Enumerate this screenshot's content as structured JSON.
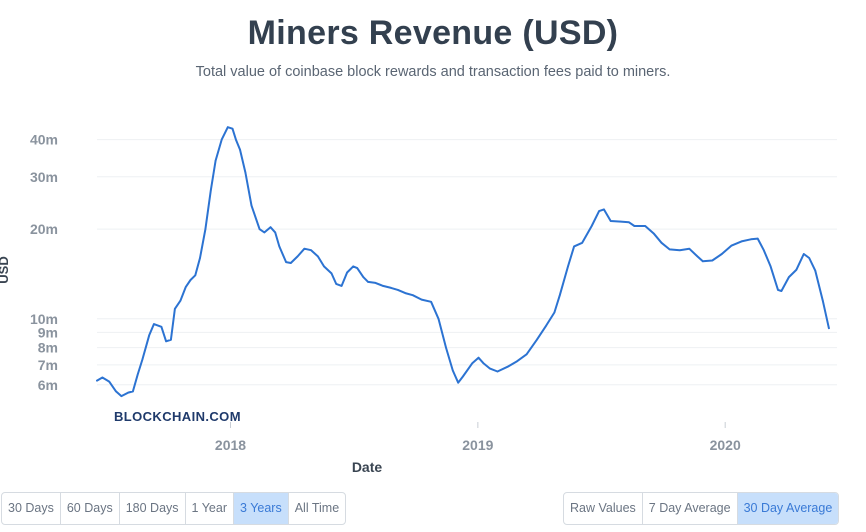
{
  "header": {
    "title": "Miners Revenue (USD)",
    "subtitle": "Total value of coinbase block rewards and transaction fees paid to miners."
  },
  "watermark": "BLOCKCHAIN.COM",
  "colors": {
    "line": "#2c73d2",
    "grid": "#eef0f3",
    "axis_text": "#8a939e",
    "active_button": "#c7dffb"
  },
  "range_buttons": [
    {
      "label": "30 Days",
      "active": false
    },
    {
      "label": "60 Days",
      "active": false
    },
    {
      "label": "180 Days",
      "active": false
    },
    {
      "label": "1 Year",
      "active": false
    },
    {
      "label": "3 Years",
      "active": true
    },
    {
      "label": "All Time",
      "active": false
    }
  ],
  "average_buttons": [
    {
      "label": "Raw Values",
      "active": false
    },
    {
      "label": "7 Day Average",
      "active": false
    },
    {
      "label": "30 Day Average",
      "active": true
    }
  ],
  "chart_data": {
    "type": "line",
    "title": "Miners Revenue (USD)",
    "xlabel": "Date",
    "ylabel": "USD",
    "y_scale": "log",
    "grid": true,
    "ylim": [
      4500000,
      48000000
    ],
    "xlim": [
      "2017-06-18",
      "2020-06-14"
    ],
    "x_ticks": [
      {
        "label": "2018",
        "date": "2018-01-01"
      },
      {
        "label": "2019",
        "date": "2019-01-01"
      },
      {
        "label": "2020",
        "date": "2020-01-01"
      }
    ],
    "y_ticks": [
      {
        "label": "6m",
        "value": 6000000
      },
      {
        "label": "7m",
        "value": 7000000
      },
      {
        "label": "8m",
        "value": 8000000
      },
      {
        "label": "9m",
        "value": 9000000
      },
      {
        "label": "10m",
        "value": 10000000
      },
      {
        "label": "20m",
        "value": 20000000
      },
      {
        "label": "30m",
        "value": 30000000
      },
      {
        "label": "40m",
        "value": 40000000
      }
    ],
    "series": [
      {
        "points": [
          [
            "2017-06-18",
            6200000
          ],
          [
            "2017-06-26",
            6350000
          ],
          [
            "2017-07-06",
            6150000
          ],
          [
            "2017-07-16",
            5700000
          ],
          [
            "2017-07-24",
            5500000
          ],
          [
            "2017-08-03",
            5650000
          ],
          [
            "2017-08-10",
            5700000
          ],
          [
            "2017-08-17",
            6500000
          ],
          [
            "2017-08-24",
            7300000
          ],
          [
            "2017-09-03",
            8800000
          ],
          [
            "2017-09-10",
            9600000
          ],
          [
            "2017-09-21",
            9400000
          ],
          [
            "2017-09-28",
            8400000
          ],
          [
            "2017-10-05",
            8500000
          ],
          [
            "2017-10-11",
            10800000
          ],
          [
            "2017-10-19",
            11500000
          ],
          [
            "2017-10-27",
            12800000
          ],
          [
            "2017-11-03",
            13500000
          ],
          [
            "2017-11-10",
            14000000
          ],
          [
            "2017-11-17",
            16000000
          ],
          [
            "2017-11-25",
            20000000
          ],
          [
            "2017-12-03",
            27000000
          ],
          [
            "2017-12-10",
            34000000
          ],
          [
            "2017-12-19",
            40000000
          ],
          [
            "2017-12-28",
            44000000
          ],
          [
            "2018-01-04",
            43500000
          ],
          [
            "2018-01-09",
            40000000
          ],
          [
            "2018-01-15",
            37000000
          ],
          [
            "2018-01-23",
            31000000
          ],
          [
            "2018-02-01",
            24000000
          ],
          [
            "2018-02-13",
            20000000
          ],
          [
            "2018-02-20",
            19500000
          ],
          [
            "2018-03-01",
            20300000
          ],
          [
            "2018-03-08",
            19500000
          ],
          [
            "2018-03-14",
            17500000
          ],
          [
            "2018-03-24",
            15500000
          ],
          [
            "2018-03-31",
            15400000
          ],
          [
            "2018-04-10",
            16200000
          ],
          [
            "2018-04-20",
            17200000
          ],
          [
            "2018-04-30",
            17000000
          ],
          [
            "2018-05-10",
            16200000
          ],
          [
            "2018-05-19",
            15000000
          ],
          [
            "2018-05-30",
            14200000
          ],
          [
            "2018-06-06",
            13100000
          ],
          [
            "2018-06-14",
            12900000
          ],
          [
            "2018-06-22",
            14300000
          ],
          [
            "2018-07-01",
            15000000
          ],
          [
            "2018-07-07",
            14800000
          ],
          [
            "2018-07-16",
            13800000
          ],
          [
            "2018-07-23",
            13300000
          ],
          [
            "2018-08-03",
            13200000
          ],
          [
            "2018-08-14",
            12900000
          ],
          [
            "2018-08-26",
            12700000
          ],
          [
            "2018-09-05",
            12500000
          ],
          [
            "2018-09-16",
            12200000
          ],
          [
            "2018-09-27",
            12000000
          ],
          [
            "2018-10-10",
            11600000
          ],
          [
            "2018-10-24",
            11400000
          ],
          [
            "2018-11-04",
            10000000
          ],
          [
            "2018-11-15",
            8000000
          ],
          [
            "2018-11-25",
            6700000
          ],
          [
            "2018-12-03",
            6100000
          ],
          [
            "2018-12-10",
            6400000
          ],
          [
            "2018-12-24",
            7100000
          ],
          [
            "2019-01-02",
            7400000
          ],
          [
            "2019-01-09",
            7100000
          ],
          [
            "2019-01-19",
            6800000
          ],
          [
            "2019-01-30",
            6650000
          ],
          [
            "2019-02-14",
            6900000
          ],
          [
            "2019-02-28",
            7200000
          ],
          [
            "2019-03-14",
            7600000
          ],
          [
            "2019-03-29",
            8500000
          ],
          [
            "2019-04-12",
            9500000
          ],
          [
            "2019-04-24",
            10500000
          ],
          [
            "2019-05-02",
            12000000
          ],
          [
            "2019-05-14",
            15000000
          ],
          [
            "2019-05-23",
            17500000
          ],
          [
            "2019-06-04",
            18000000
          ],
          [
            "2019-06-18",
            20500000
          ],
          [
            "2019-06-29",
            23000000
          ],
          [
            "2019-07-06",
            23300000
          ],
          [
            "2019-07-16",
            21300000
          ],
          [
            "2019-07-31",
            21200000
          ],
          [
            "2019-08-12",
            21100000
          ],
          [
            "2019-08-20",
            20500000
          ],
          [
            "2019-09-05",
            20500000
          ],
          [
            "2019-09-18",
            19300000
          ],
          [
            "2019-09-29",
            18000000
          ],
          [
            "2019-10-11",
            17100000
          ],
          [
            "2019-10-26",
            17000000
          ],
          [
            "2019-11-09",
            17200000
          ],
          [
            "2019-11-21",
            16200000
          ],
          [
            "2019-11-29",
            15600000
          ],
          [
            "2019-12-13",
            15700000
          ],
          [
            "2019-12-27",
            16500000
          ],
          [
            "2020-01-10",
            17600000
          ],
          [
            "2020-01-25",
            18200000
          ],
          [
            "2020-02-08",
            18500000
          ],
          [
            "2020-02-18",
            18600000
          ],
          [
            "2020-02-27",
            17000000
          ],
          [
            "2020-03-08",
            15000000
          ],
          [
            "2020-03-19",
            12500000
          ],
          [
            "2020-03-24",
            12400000
          ],
          [
            "2020-04-04",
            13800000
          ],
          [
            "2020-04-15",
            14600000
          ],
          [
            "2020-04-26",
            16500000
          ],
          [
            "2020-05-04",
            16000000
          ],
          [
            "2020-05-13",
            14500000
          ],
          [
            "2020-05-24",
            11500000
          ],
          [
            "2020-06-02",
            9300000
          ]
        ]
      }
    ]
  }
}
